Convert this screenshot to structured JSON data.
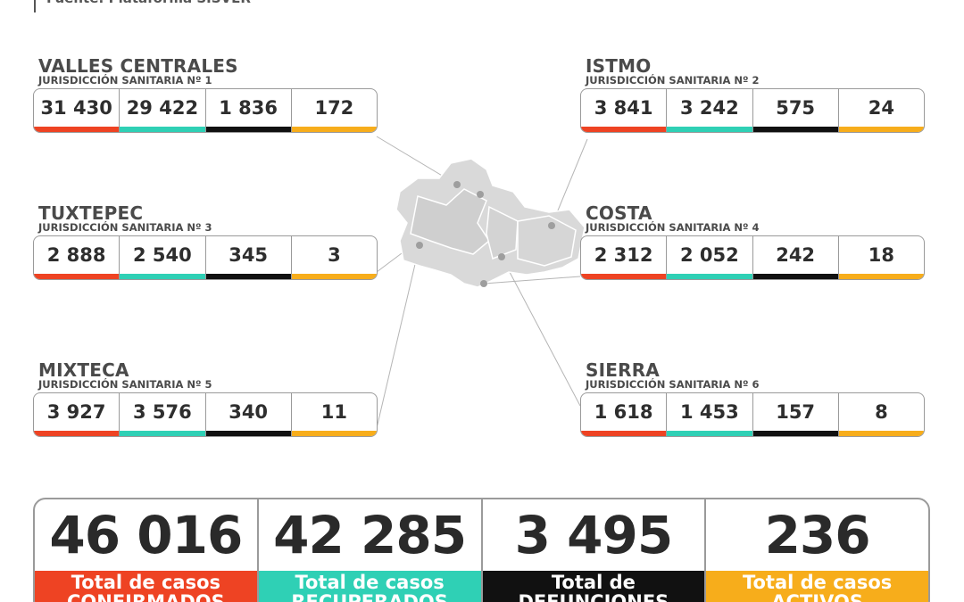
{
  "source": "Fuente: Plataforma SISVER",
  "colors": {
    "confirmados": "#ee4323",
    "recuperados": "#2fd0b5",
    "defunciones": "#111111",
    "activos": "#f7ad1b",
    "map": "#d9d9d9"
  },
  "regions": {
    "valles": {
      "name": "VALLES CENTRALES",
      "sub": "JURISDICCIÓN SANITARIA Nº 1",
      "values": [
        "31 430",
        "29 422",
        "1 836",
        "172"
      ]
    },
    "istmo": {
      "name": "ISTMO",
      "sub": "JURISDICCIÓN SANITARIA Nº 2",
      "values": [
        "3 841",
        "3 242",
        "575",
        "24"
      ]
    },
    "tuxtepec": {
      "name": "TUXTEPEC",
      "sub": "JURISDICCIÓN SANITARIA Nº 3",
      "values": [
        "2 888",
        "2 540",
        "345",
        "3"
      ]
    },
    "costa": {
      "name": "COSTA",
      "sub": "JURISDICCIÓN SANITARIA Nº 4",
      "values": [
        "2 312",
        "2 052",
        "242",
        "18"
      ]
    },
    "mixteca": {
      "name": "MIXTECA",
      "sub": "JURISDICCIÓN SANITARIA Nº 5",
      "values": [
        "3 927",
        "3 576",
        "340",
        "11"
      ]
    },
    "sierra": {
      "name": "SIERRA",
      "sub": "JURISDICCIÓN SANITARIA Nº 6",
      "values": [
        "1 618",
        "1 453",
        "157",
        "8"
      ]
    }
  },
  "totals": [
    {
      "value": "46 016",
      "label_line1": "Total de casos",
      "label_line2": "CONFIRMADOS"
    },
    {
      "value": "42 285",
      "label_line1": "Total de casos",
      "label_line2": "RECUPERADOS"
    },
    {
      "value": "3 495",
      "label_line1": "Total de",
      "label_line2": "DEFUNCIONES"
    },
    {
      "value": "236",
      "label_line1": "Total de casos",
      "label_line2": "ACTIVOS"
    }
  ]
}
